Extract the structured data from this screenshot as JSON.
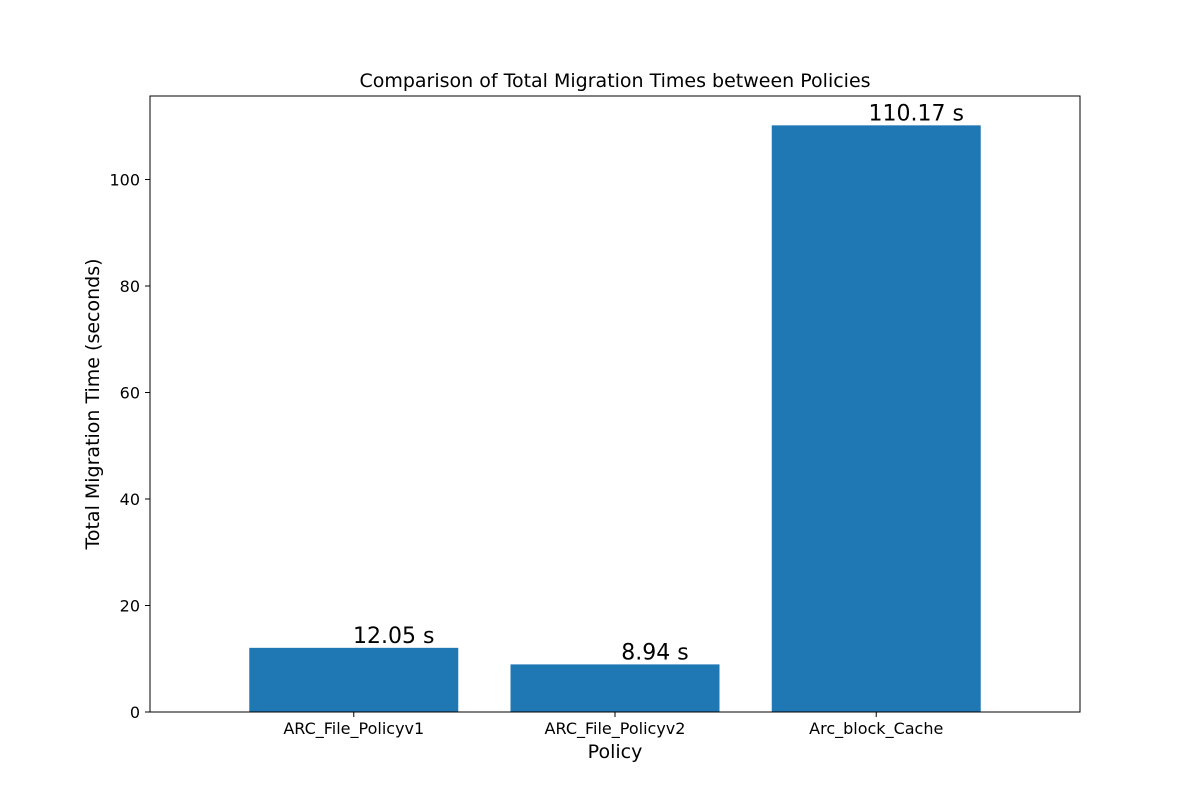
{
  "chart_data": {
    "type": "bar",
    "title": "Comparison of Total Migration Times between Policies",
    "xlabel": "Policy",
    "ylabel": "Total Migration Time (seconds)",
    "categories": [
      "ARC_File_Policyv1",
      "ARC_File_Policyv2",
      "Arc_block_Cache"
    ],
    "values": [
      12.05,
      8.94,
      110.17
    ],
    "value_labels": [
      "12.05 s",
      "8.94 s",
      "110.17 s"
    ],
    "ylim": [
      0,
      115.68
    ],
    "yticks": [
      0,
      20,
      40,
      60,
      80,
      100
    ],
    "grid": false,
    "bar_color": "#1f77b4"
  }
}
